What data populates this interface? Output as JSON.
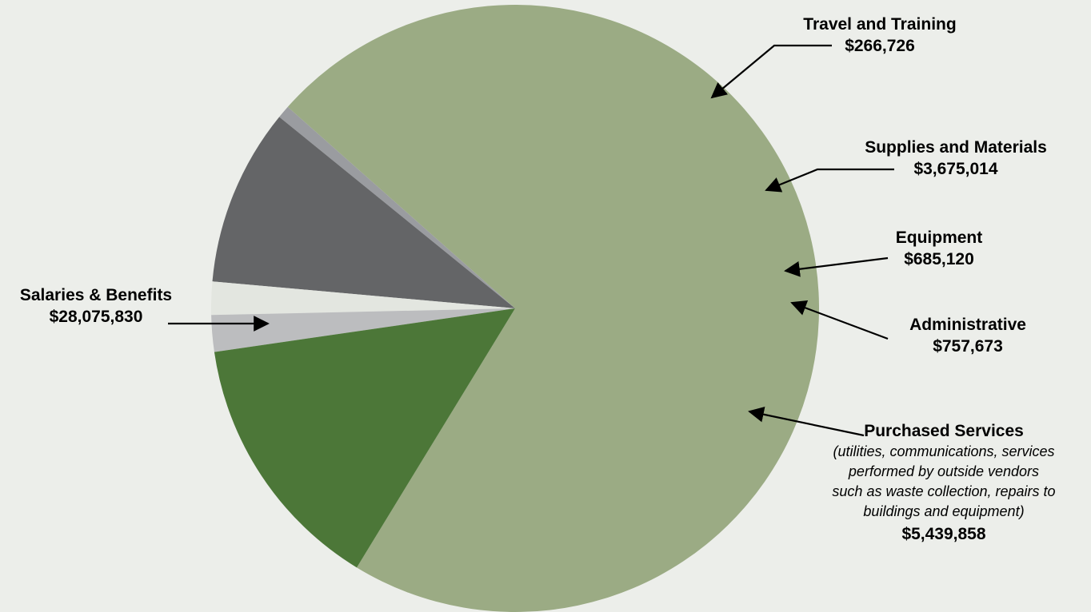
{
  "chart_data": {
    "type": "pie",
    "title": "",
    "slices": [
      {
        "id": "salaries",
        "label": "Salaries & Benefits",
        "value_label": "$28,075,830",
        "value": 28075830,
        "color": "#9bab84"
      },
      {
        "id": "travel",
        "label": "Travel and Training",
        "value_label": "$266,726",
        "value": 266726,
        "color": "#9a9ca0"
      },
      {
        "id": "supplies",
        "label": "Supplies and Materials",
        "value_label": "$3,675,014",
        "value": 3675014,
        "color": "#646567"
      },
      {
        "id": "equipment",
        "label": "Equipment",
        "value_label": "$685,120",
        "value": 685120,
        "color": "#e3e6e0"
      },
      {
        "id": "admin",
        "label": "Administrative",
        "value_label": "$757,673",
        "value": 757673,
        "color": "#bcbdbf"
      },
      {
        "id": "purchased",
        "label": "Purchased Services",
        "value_label": "$5,439,858",
        "value": 5439858,
        "color": "#4c7738",
        "note": [
          "(utilities, communications, services",
          "performed by outside vendors",
          "such as waste collection,  repairs to",
          "buildings and equipment)"
        ]
      }
    ],
    "legend": "none",
    "grid": false
  }
}
